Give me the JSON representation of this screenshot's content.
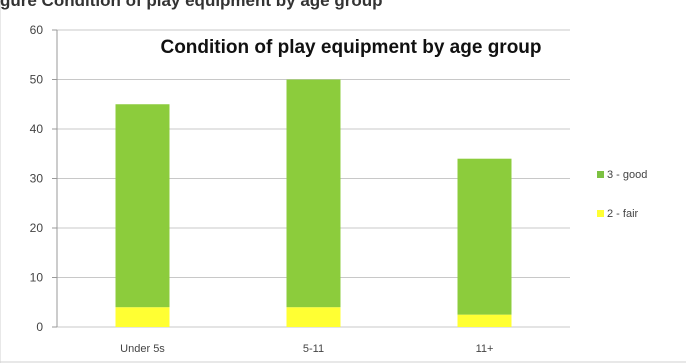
{
  "top_caption": "gure       Condition of play equipment by age group",
  "chart_data": {
    "type": "bar",
    "stacked": true,
    "title": "Condition of play equipment by age group",
    "xlabel": "",
    "ylabel": "",
    "categories": [
      "Under 5s",
      "5-11",
      "11+"
    ],
    "ylim": [
      0,
      60
    ],
    "yticks": [
      0,
      10,
      20,
      30,
      40,
      50,
      60
    ],
    "grid": true,
    "legend_position": "right",
    "series": [
      {
        "name": "2 - fair",
        "values": [
          4,
          4,
          2.5
        ],
        "color": "#ffff33"
      },
      {
        "name": "3 - good",
        "values": [
          41,
          46,
          31.5
        ],
        "color": "#8ccc3c"
      }
    ],
    "legend": [
      {
        "name": "3 - good",
        "color": "#7cc142"
      },
      {
        "name": "2 - fair",
        "color": "#ffff33"
      }
    ]
  }
}
